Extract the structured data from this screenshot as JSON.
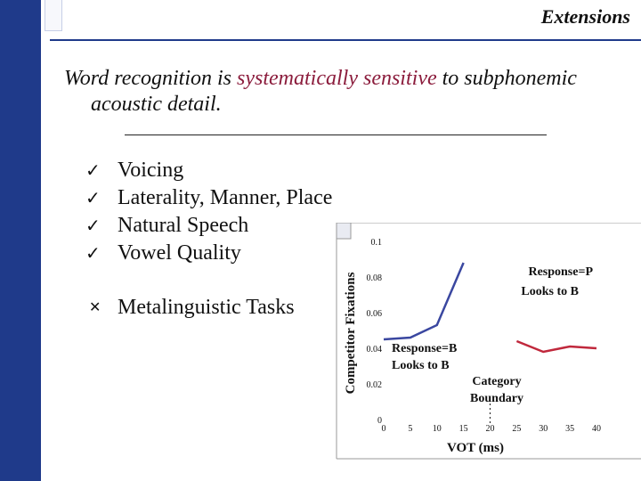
{
  "slide": {
    "title": "Extensions",
    "headline_part1": "Word recognition is ",
    "headline_highlight": "systematically sensitive",
    "headline_part2": " to subphonemic",
    "headline_line2": "acoustic detail.",
    "checklist": [
      {
        "mark": "✓",
        "label": "Voicing"
      },
      {
        "mark": "✓",
        "label": "Laterality, Manner, Place"
      },
      {
        "mark": "✓",
        "label": "Natural Speech"
      },
      {
        "mark": "✓",
        "label": "Vowel Quality"
      }
    ],
    "cross_item": {
      "mark": "✕",
      "label": "Metalinguistic Tasks"
    },
    "colors": {
      "sidebar": "#1f3a8a",
      "highlight": "#8b1c3c",
      "line_p": "#3a47a0",
      "line_b": "#c0283c"
    }
  },
  "chart_data": {
    "type": "line",
    "xlabel": "VOT (ms)",
    "ylabel": "Competitor Fixations",
    "x_ticks": [
      "0",
      "5",
      "10",
      "15",
      "20",
      "25",
      "30",
      "35",
      "40"
    ],
    "y_ticks": [
      "0",
      "0.02",
      "0.04",
      "0.06",
      "0.08",
      "0.1"
    ],
    "xlim": [
      0,
      40
    ],
    "ylim": [
      0,
      0.1
    ],
    "series": [
      {
        "x": [
          0,
          5,
          10,
          15
        ],
        "y": [
          0.045,
          0.046,
          0.053,
          0.088
        ]
      },
      {
        "x": [
          25,
          30,
          35,
          40
        ],
        "y": [
          0.044,
          0.038,
          0.041,
          0.04
        ]
      }
    ],
    "annotations": {
      "response_p": [
        "Response=P",
        "Looks to B"
      ],
      "response_b": [
        "Response=B",
        "Looks to B"
      ],
      "boundary": [
        "Category",
        "Boundary"
      ]
    },
    "boundary_x": 20
  }
}
